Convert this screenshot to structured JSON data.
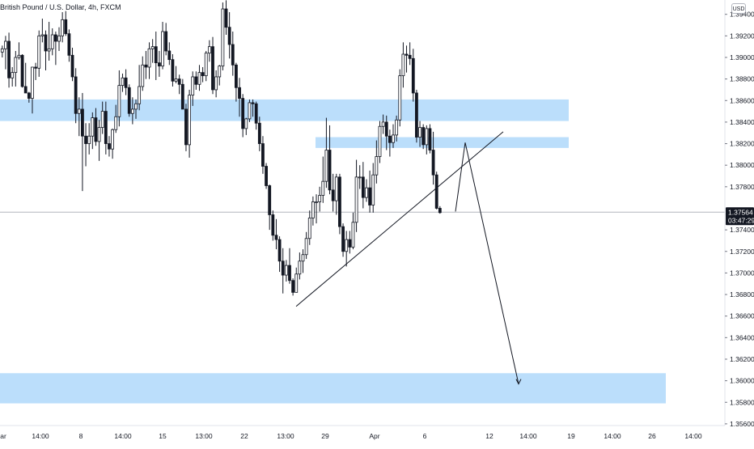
{
  "header": {
    "symbol_title": "British Pound / U.S. Dollar, 4h, FXCM",
    "currency": "USD"
  },
  "price_tag": {
    "price": "1.37564",
    "countdown": "03:47:29"
  },
  "colors": {
    "bullish": "#131722",
    "bearish": "#131722",
    "zone": "#bbdefb",
    "drawing": "#131722",
    "price_tag_bg": "#131722",
    "crosshair": "#b2b5be"
  },
  "chart_data": {
    "type": "candlestick",
    "instrument": "GBPUSD",
    "timeframe": "4h",
    "source": "FXCM",
    "y_axis": {
      "ticks": [
        "1.39400",
        "1.39200",
        "1.39000",
        "1.38800",
        "1.38600",
        "1.38400",
        "1.38200",
        "1.38000",
        "1.37800",
        "1.37400",
        "1.37200",
        "1.37000",
        "1.36800",
        "1.36600",
        "1.36400",
        "1.36200",
        "1.36000",
        "1.35800",
        "1.35600"
      ],
      "range": [
        1.3552,
        1.3952
      ]
    },
    "x_axis": {
      "ticks": [
        "ar",
        "14:00",
        "8",
        "14:00",
        "15",
        "13:00",
        "22",
        "13:00",
        "29",
        "Apr",
        "6",
        "12",
        "14:00",
        "19",
        "14:00",
        "26",
        "14:00"
      ]
    },
    "current_price": 1.37564,
    "zones": [
      {
        "from": 1.3841,
        "to": 1.3861
      },
      {
        "from": 1.3816,
        "to": 1.3826
      },
      {
        "from": 1.3579,
        "to": 1.3607
      }
    ],
    "trendline": [
      [
        1.3669
      ],
      [
        1.3831
      ]
    ],
    "projection": [
      1.3757,
      1.3821,
      1.3597
    ],
    "candles": [
      [
        1.3905,
        1.3911,
        1.39,
        1.3908
      ],
      [
        1.3908,
        1.392,
        1.3889,
        1.3915
      ],
      [
        1.3915,
        1.3923,
        1.3872,
        1.3881
      ],
      [
        1.3881,
        1.3891,
        1.3873,
        1.3886
      ],
      [
        1.3886,
        1.3906,
        1.3873,
        1.39
      ],
      [
        1.39,
        1.3914,
        1.3898,
        1.3902
      ],
      [
        1.3902,
        1.3903,
        1.3872,
        1.3873
      ],
      [
        1.3873,
        1.3895,
        1.3867,
        1.3867
      ],
      [
        1.3867,
        1.3868,
        1.3858,
        1.3862
      ],
      [
        1.3862,
        1.3891,
        1.3848,
        1.3891
      ],
      [
        1.3891,
        1.3895,
        1.3879,
        1.389
      ],
      [
        1.389,
        1.3925,
        1.3882,
        1.392
      ],
      [
        1.392,
        1.3936,
        1.3914,
        1.3921
      ],
      [
        1.3921,
        1.3925,
        1.3888,
        1.3906
      ],
      [
        1.3906,
        1.3933,
        1.3897,
        1.3908
      ],
      [
        1.3908,
        1.3927,
        1.3902,
        1.3921
      ],
      [
        1.3921,
        1.3924,
        1.3893,
        1.3915
      ],
      [
        1.3915,
        1.3928,
        1.3906,
        1.392
      ],
      [
        1.392,
        1.3942,
        1.3914,
        1.3935
      ],
      [
        1.3935,
        1.3943,
        1.392,
        1.3922
      ],
      [
        1.3922,
        1.3926,
        1.3896,
        1.3902
      ],
      [
        1.3902,
        1.3909,
        1.3878,
        1.3882
      ],
      [
        1.3882,
        1.389,
        1.3839,
        1.3848
      ],
      [
        1.3848,
        1.3863,
        1.3827,
        1.3852
      ],
      [
        1.3852,
        1.3867,
        1.3776,
        1.3827
      ],
      [
        1.3827,
        1.3839,
        1.3799,
        1.382
      ],
      [
        1.382,
        1.3839,
        1.381,
        1.3827
      ],
      [
        1.3827,
        1.3849,
        1.3815,
        1.3844
      ],
      [
        1.3844,
        1.3853,
        1.3818,
        1.3822
      ],
      [
        1.3822,
        1.3842,
        1.3804,
        1.3835
      ],
      [
        1.3835,
        1.3859,
        1.3829,
        1.385
      ],
      [
        1.385,
        1.3859,
        1.381,
        1.382
      ],
      [
        1.382,
        1.3827,
        1.3808,
        1.3815
      ],
      [
        1.3815,
        1.3834,
        1.3806,
        1.3833
      ],
      [
        1.3833,
        1.3856,
        1.383,
        1.3845
      ],
      [
        1.3845,
        1.3888,
        1.3836,
        1.3874
      ],
      [
        1.3874,
        1.3885,
        1.3868,
        1.3881
      ],
      [
        1.3881,
        1.3889,
        1.3865,
        1.3872
      ],
      [
        1.3872,
        1.3875,
        1.3845,
        1.3848
      ],
      [
        1.3848,
        1.3863,
        1.3838,
        1.3852
      ],
      [
        1.3852,
        1.3861,
        1.3843,
        1.3857
      ],
      [
        1.3857,
        1.3893,
        1.3851,
        1.3873
      ],
      [
        1.3873,
        1.3901,
        1.3869,
        1.3893
      ],
      [
        1.3893,
        1.3906,
        1.388,
        1.3891
      ],
      [
        1.3891,
        1.3914,
        1.388,
        1.3908
      ],
      [
        1.3908,
        1.3917,
        1.3895,
        1.391
      ],
      [
        1.391,
        1.3924,
        1.3879,
        1.3895
      ],
      [
        1.3895,
        1.3906,
        1.3882,
        1.3892
      ],
      [
        1.3892,
        1.3933,
        1.3889,
        1.3924
      ],
      [
        1.3924,
        1.3932,
        1.3902,
        1.3906
      ],
      [
        1.3906,
        1.3914,
        1.3893,
        1.3898
      ],
      [
        1.3898,
        1.3903,
        1.3873,
        1.3878
      ],
      [
        1.3878,
        1.3892,
        1.3876,
        1.388
      ],
      [
        1.388,
        1.3884,
        1.3866,
        1.3875
      ],
      [
        1.3875,
        1.388,
        1.3852,
        1.3852
      ],
      [
        1.3852,
        1.3857,
        1.3813,
        1.3819
      ],
      [
        1.3819,
        1.387,
        1.3807,
        1.3865
      ],
      [
        1.3865,
        1.3887,
        1.3855,
        1.3882
      ],
      [
        1.3882,
        1.3887,
        1.387,
        1.3875
      ],
      [
        1.3875,
        1.3893,
        1.3869,
        1.3886
      ],
      [
        1.3886,
        1.3891,
        1.3877,
        1.3883
      ],
      [
        1.3883,
        1.3906,
        1.3878,
        1.3904
      ],
      [
        1.3904,
        1.3916,
        1.3896,
        1.391
      ],
      [
        1.391,
        1.3919,
        1.3866,
        1.387
      ],
      [
        1.387,
        1.3888,
        1.3863,
        1.3882
      ],
      [
        1.3882,
        1.3893,
        1.3874,
        1.3892
      ],
      [
        1.3892,
        1.3951,
        1.3888,
        1.3945
      ],
      [
        1.3945,
        1.3953,
        1.3921,
        1.3928
      ],
      [
        1.3928,
        1.3942,
        1.3899,
        1.3912
      ],
      [
        1.3912,
        1.3924,
        1.3883,
        1.3893
      ],
      [
        1.3893,
        1.3895,
        1.3859,
        1.3872
      ],
      [
        1.3872,
        1.3881,
        1.3845,
        1.3862
      ],
      [
        1.3862,
        1.3866,
        1.3826,
        1.3834
      ],
      [
        1.3834,
        1.3844,
        1.3828,
        1.3843
      ],
      [
        1.3843,
        1.3861,
        1.384,
        1.3858
      ],
      [
        1.3858,
        1.3861,
        1.3845,
        1.3857
      ],
      [
        1.3857,
        1.3859,
        1.3833,
        1.3839
      ],
      [
        1.3839,
        1.3845,
        1.3813,
        1.382
      ],
      [
        1.382,
        1.3827,
        1.3792,
        1.3799
      ],
      [
        1.3799,
        1.3802,
        1.3778,
        1.3781
      ],
      [
        1.3781,
        1.3782,
        1.374,
        1.3754
      ],
      [
        1.3754,
        1.3758,
        1.373,
        1.3735
      ],
      [
        1.3735,
        1.375,
        1.3722,
        1.3731
      ],
      [
        1.3731,
        1.3734,
        1.3701,
        1.3711
      ],
      [
        1.3711,
        1.3723,
        1.3681,
        1.3698
      ],
      [
        1.3698,
        1.3712,
        1.3692,
        1.3707
      ],
      [
        1.3707,
        1.3723,
        1.369,
        1.3693
      ],
      [
        1.3693,
        1.3695,
        1.3679,
        1.3682
      ],
      [
        1.3682,
        1.3705,
        1.3682,
        1.3699
      ],
      [
        1.3699,
        1.3719,
        1.3694,
        1.3711
      ],
      [
        1.3711,
        1.3722,
        1.37,
        1.3717
      ],
      [
        1.3717,
        1.3738,
        1.3713,
        1.3732
      ],
      [
        1.3732,
        1.3758,
        1.3726,
        1.3751
      ],
      [
        1.3751,
        1.3771,
        1.3744,
        1.3766
      ],
      [
        1.3766,
        1.3773,
        1.3746,
        1.3766
      ],
      [
        1.3766,
        1.378,
        1.3757,
        1.3772
      ],
      [
        1.3772,
        1.3808,
        1.3765,
        1.3785
      ],
      [
        1.3785,
        1.3844,
        1.3779,
        1.3814
      ],
      [
        1.3814,
        1.3837,
        1.3773,
        1.3777
      ],
      [
        1.3777,
        1.3792,
        1.3757,
        1.3767
      ],
      [
        1.3767,
        1.3792,
        1.3754,
        1.3789
      ],
      [
        1.3789,
        1.3792,
        1.3736,
        1.3743
      ],
      [
        1.3743,
        1.3746,
        1.3715,
        1.372
      ],
      [
        1.372,
        1.3739,
        1.3706,
        1.3731
      ],
      [
        1.3731,
        1.3739,
        1.3718,
        1.3724
      ],
      [
        1.3724,
        1.3756,
        1.3722,
        1.3747
      ],
      [
        1.3747,
        1.3805,
        1.3738,
        1.3789
      ],
      [
        1.3789,
        1.38,
        1.3778,
        1.3789
      ],
      [
        1.3789,
        1.3803,
        1.376,
        1.377
      ],
      [
        1.377,
        1.3787,
        1.3766,
        1.3779
      ],
      [
        1.3779,
        1.3795,
        1.3756,
        1.3763
      ],
      [
        1.3763,
        1.3802,
        1.3756,
        1.3791
      ],
      [
        1.3791,
        1.3823,
        1.3783,
        1.3808
      ],
      [
        1.3808,
        1.3841,
        1.3802,
        1.3836
      ],
      [
        1.3836,
        1.3847,
        1.3829,
        1.384
      ],
      [
        1.384,
        1.3846,
        1.3814,
        1.3827
      ],
      [
        1.3827,
        1.3833,
        1.3808,
        1.3821
      ],
      [
        1.3821,
        1.3838,
        1.3816,
        1.3828
      ],
      [
        1.3828,
        1.3846,
        1.3822,
        1.3842
      ],
      [
        1.3842,
        1.3889,
        1.3836,
        1.3883
      ],
      [
        1.3883,
        1.3914,
        1.3872,
        1.3903
      ],
      [
        1.3903,
        1.3911,
        1.3886,
        1.3902
      ],
      [
        1.3902,
        1.3914,
        1.3893,
        1.3899
      ],
      [
        1.3899,
        1.3908,
        1.3859,
        1.3867
      ],
      [
        1.3867,
        1.387,
        1.3821,
        1.3826
      ],
      [
        1.3826,
        1.3841,
        1.3817,
        1.3835
      ],
      [
        1.3835,
        1.3838,
        1.3815,
        1.3819
      ],
      [
        1.3819,
        1.3837,
        1.381,
        1.3834
      ],
      [
        1.3834,
        1.3838,
        1.3811,
        1.3814
      ],
      [
        1.3814,
        1.3831,
        1.3782,
        1.3791
      ],
      [
        1.3791,
        1.3794,
        1.3759,
        1.376
      ],
      [
        1.376,
        1.3762,
        1.3755,
        1.3756
      ]
    ]
  }
}
